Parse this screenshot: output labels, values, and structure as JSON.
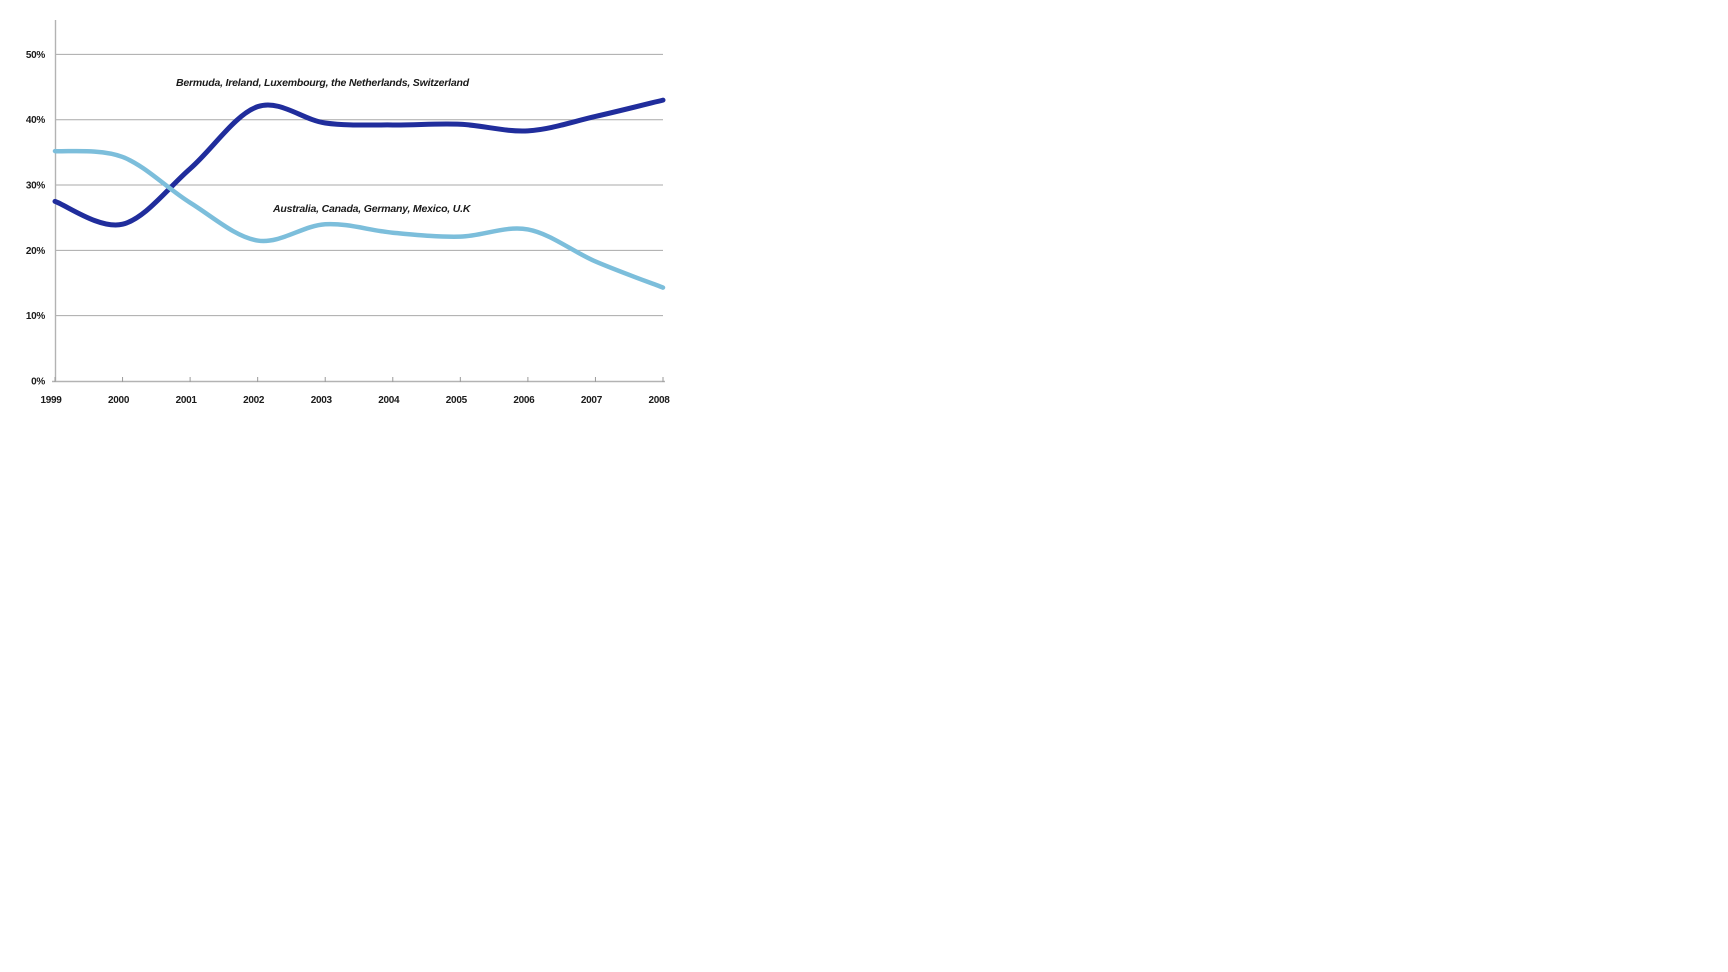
{
  "chart_data": {
    "type": "line",
    "title": "",
    "xlabel": "",
    "ylabel": "",
    "x": [
      1999,
      2000,
      2001,
      2002,
      2003,
      2004,
      2005,
      2006,
      2007,
      2008
    ],
    "x_tick_labels": [
      "1999",
      "2000",
      "2001",
      "2002",
      "2003",
      "2004",
      "2005",
      "2006",
      "2007",
      "2008"
    ],
    "y_tick_labels": [
      "0%",
      "10%",
      "20%",
      "30%",
      "40%",
      "50%"
    ],
    "y_ticks": [
      0,
      10,
      20,
      30,
      40,
      50
    ],
    "ylim": [
      0,
      55
    ],
    "grid": "horizontal",
    "legend_position": "inline-annotations",
    "series": [
      {
        "name": "Bermuda, Ireland, Luxembourg, the Netherlands, Switzerland",
        "color": "#202D9C",
        "stroke_width": 5,
        "values": [
          27.5,
          24.0,
          32.5,
          42.0,
          39.5,
          39.2,
          39.3,
          38.3,
          40.5,
          43.0
        ]
      },
      {
        "name": "Australia, Canada, Germany, Mexico, U.K",
        "color": "#7CBEDB",
        "stroke_width": 4.5,
        "values": [
          35.2,
          34.3,
          27.3,
          21.5,
          24.0,
          22.7,
          22.1,
          23.2,
          18.3,
          14.3
        ]
      }
    ],
    "annotations": [
      {
        "text": "Bermuda, Ireland, Luxembourg, the Netherlands, Switzerland",
        "series": 0
      },
      {
        "text": "Australia, Canada, Germany, Mexico, U.K",
        "series": 1
      }
    ]
  },
  "colors": {
    "gridline": "#a9a9a9",
    "axis": "#b3b3b3",
    "tick": "#9a9a9a",
    "background": "#ffffff"
  }
}
